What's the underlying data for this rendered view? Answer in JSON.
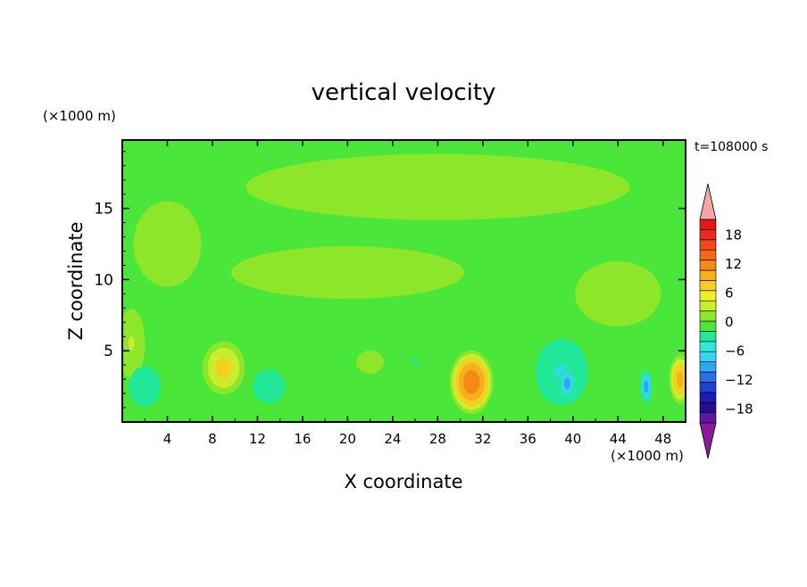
{
  "chart_data": {
    "type": "heatmap",
    "title": "vertical velocity",
    "xlabel": "X coordinate",
    "ylabel": "Z coordinate",
    "x_unit": "(×1000 m)",
    "y_unit": "(×1000 m)",
    "time_label": "t=108000 s",
    "xlim": [
      0,
      50
    ],
    "ylim": [
      0,
      19.8
    ],
    "x_ticks": [
      4,
      8,
      12,
      16,
      20,
      24,
      28,
      32,
      36,
      40,
      44,
      48
    ],
    "y_ticks": [
      5,
      10,
      15
    ],
    "colorbar": {
      "labels": [
        18,
        12,
        6,
        0,
        -6,
        -12,
        -18
      ],
      "range": [
        -21,
        21
      ],
      "step": 3,
      "extend": "both",
      "colors_low_to_high": [
        "#5a189a",
        "#2a0a8c",
        "#1a1ab4",
        "#1f3fd6",
        "#2b6fe6",
        "#2fa6f0",
        "#33d6f5",
        "#33e6d6",
        "#22e89a",
        "#4be63a",
        "#8ee62a",
        "#c8ef2a",
        "#f0f02a",
        "#f5d020",
        "#f5b01a",
        "#f58a18",
        "#f06a18",
        "#f04a18",
        "#e82a18",
        "#e81818"
      ],
      "under_color": "#8b1a9a",
      "over_color": "#f4a6a6"
    },
    "field": {
      "background_value": -1,
      "features": [
        {
          "x": 31,
          "z": 2.8,
          "w": 2.0,
          "h": 2.3,
          "peak": 14
        },
        {
          "x": 9,
          "z": 3.8,
          "w": 2.0,
          "h": 2.0,
          "peak": 7
        },
        {
          "x": 49.5,
          "z": 3.0,
          "w": 1.0,
          "h": 1.8,
          "peak": 10
        },
        {
          "x": 0.8,
          "z": 5.5,
          "w": 1.4,
          "h": 2.8,
          "peak": 3
        },
        {
          "x": 22,
          "z": 4.2,
          "w": 1.5,
          "h": 1.0,
          "peak": 2
        },
        {
          "x": 39,
          "z": 3.5,
          "w": 3.0,
          "h": 3.0,
          "peak": -6
        },
        {
          "x": 39.5,
          "z": 2.7,
          "w": 0.8,
          "h": 1.2,
          "peak": -10
        },
        {
          "x": 46.5,
          "z": 2.5,
          "w": 0.6,
          "h": 1.3,
          "peak": -10
        },
        {
          "x": 2,
          "z": 2.5,
          "w": 2.0,
          "h": 2.0,
          "peak": -5
        },
        {
          "x": 13,
          "z": 2.5,
          "w": 2.5,
          "h": 2.0,
          "peak": -4
        },
        {
          "x": 26,
          "z": 4.2,
          "w": 1.2,
          "h": 1.5,
          "peak": -3
        },
        {
          "x": 28,
          "z": 16.5,
          "w": 22,
          "h": 3.0,
          "peak": 1.5
        },
        {
          "x": 20,
          "z": 10.5,
          "w": 14,
          "h": 2.5,
          "peak": 1.2
        },
        {
          "x": 44,
          "z": 9.0,
          "w": 5,
          "h": 3.0,
          "peak": 1.4
        },
        {
          "x": 4,
          "z": 12.5,
          "w": 4,
          "h": 4.0,
          "peak": 1.3
        }
      ]
    }
  }
}
